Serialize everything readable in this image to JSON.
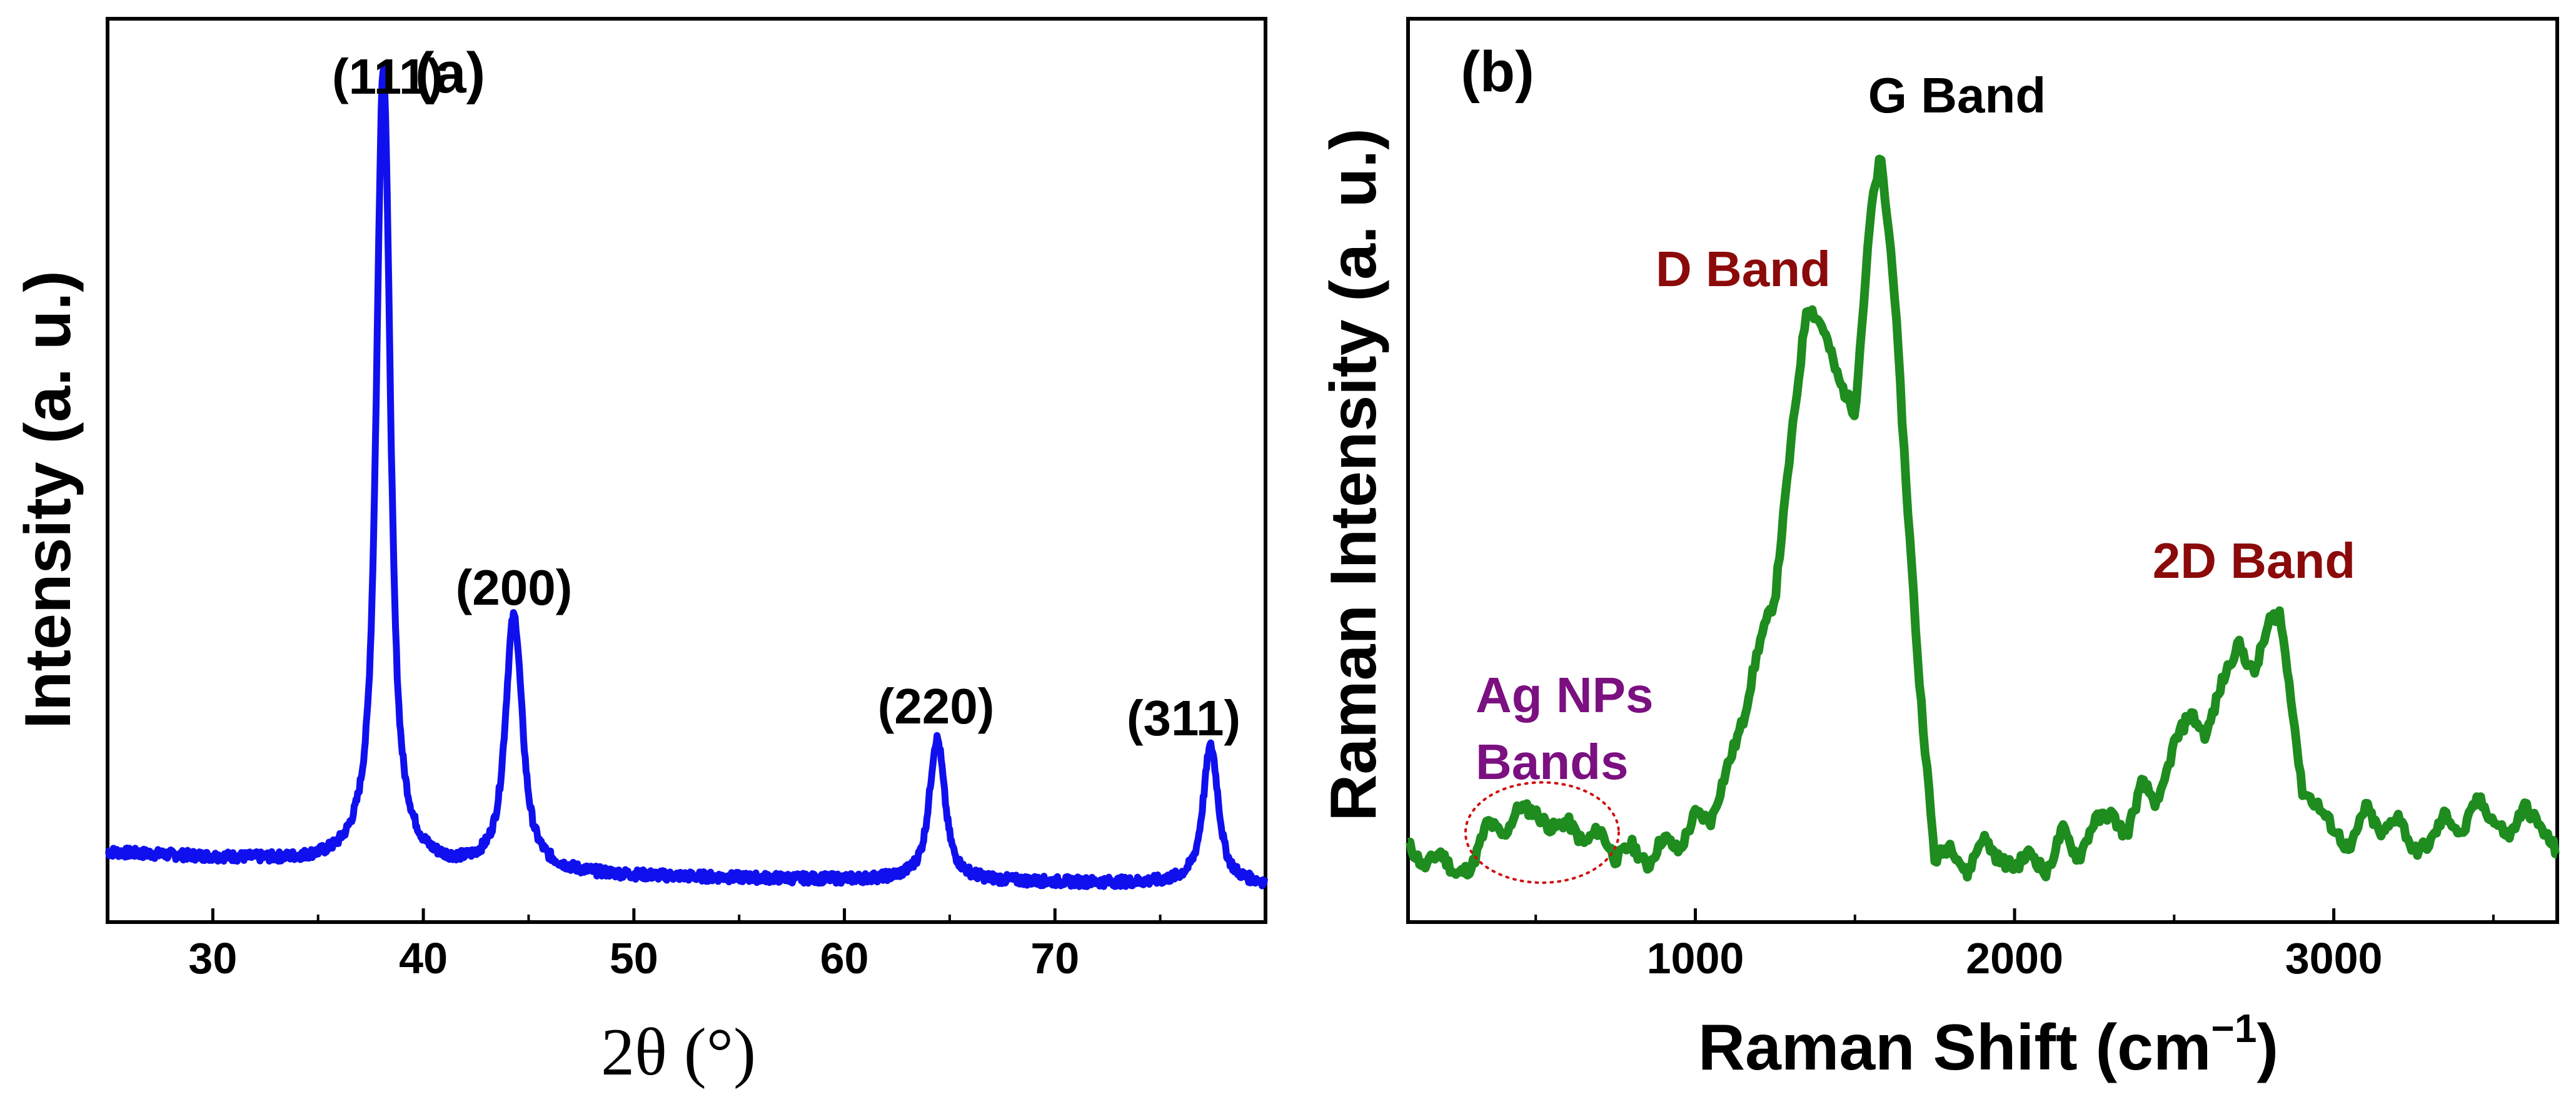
{
  "chart_data": [
    {
      "panel_label": "(a)",
      "type": "line",
      "xlabel": "2θ (°)",
      "ylabel": "Intensity (a. u.)",
      "xlim": [
        25,
        80
      ],
      "ylim": [
        0,
        100
      ],
      "xticks": [
        30,
        40,
        50,
        60,
        70
      ],
      "yticks_visible": false,
      "line_color": "#1010EE",
      "baseline": {
        "x": [
          25,
          28,
          32,
          36,
          40,
          50,
          60,
          70,
          80
        ],
        "y": [
          7.5,
          7.1,
          6.6,
          6.0,
          5.3,
          4.6,
          4.2,
          3.9,
          3.6
        ]
      },
      "peaks": [
        {
          "label": "(111)",
          "x": 38.1,
          "height": 96,
          "width": 0.45
        },
        {
          "label": "(200)",
          "x": 44.3,
          "height": 30.5,
          "width": 0.55
        },
        {
          "label": "(220)",
          "x": 64.4,
          "height": 17,
          "width": 0.5
        },
        {
          "label": "(311)",
          "x": 77.4,
          "height": 16.5,
          "width": 0.5
        }
      ]
    },
    {
      "panel_label": "(b)",
      "type": "line",
      "xlabel": "Raman Shift (cm",
      "xlabel_superscript": "−1",
      "xlabel_close": ")",
      "ylabel": "Raman Intensity (a. u.)",
      "xlim": [
        100,
        3700
      ],
      "ylim": [
        0,
        100
      ],
      "xticks": [
        1000,
        2000,
        3000
      ],
      "yticks_visible": false,
      "line_color": "#1E8C1E",
      "x": [
        100,
        150,
        200,
        250,
        300,
        350,
        400,
        450,
        500,
        550,
        600,
        650,
        700,
        750,
        800,
        850,
        900,
        950,
        1000,
        1050,
        1100,
        1150,
        1200,
        1250,
        1300,
        1350,
        1400,
        1450,
        1500,
        1550,
        1580,
        1620,
        1660,
        1700,
        1750,
        1800,
        1850,
        1900,
        1950,
        2000,
        2050,
        2100,
        2150,
        2200,
        2250,
        2300,
        2350,
        2400,
        2450,
        2500,
        2550,
        2600,
        2650,
        2700,
        2750,
        2800,
        2830,
        2870,
        2900,
        2950,
        3000,
        3050,
        3100,
        3150,
        3200,
        3250,
        3300,
        3350,
        3400,
        3450,
        3500,
        3550,
        3600,
        3650,
        3700
      ],
      "y": [
        8,
        5,
        7,
        4,
        5,
        11,
        9,
        13,
        12,
        10,
        11,
        8,
        10,
        6,
        8,
        5,
        9,
        7,
        12,
        11,
        18,
        24,
        34,
        40,
        60,
        78,
        75,
        68,
        64,
        90,
        97,
        82,
        55,
        30,
        6,
        8,
        4,
        9,
        6,
        5,
        7,
        4,
        10,
        6,
        11,
        12,
        9,
        16,
        13,
        21,
        25,
        22,
        29,
        34,
        30,
        37,
        38,
        26,
        15,
        13,
        10,
        7,
        13,
        9,
        12,
        7,
        8,
        12,
        9,
        14,
        11,
        9,
        13,
        10,
        7
      ],
      "annotations": [
        {
          "text": "G Band",
          "color": "#000000"
        },
        {
          "text": "D Band",
          "color": "#8B0A0A"
        },
        {
          "text": "2D Band",
          "color": "#8B0A0A"
        },
        {
          "text": "Ag NPs",
          "color": "#7B1080"
        },
        {
          "text": "Bands",
          "color": "#7B1080"
        }
      ],
      "highlight_ellipse": {
        "x_range": [
          280,
          760
        ],
        "y_range": [
          3,
          16
        ],
        "color": "#D01010",
        "style": "dotted"
      }
    }
  ]
}
